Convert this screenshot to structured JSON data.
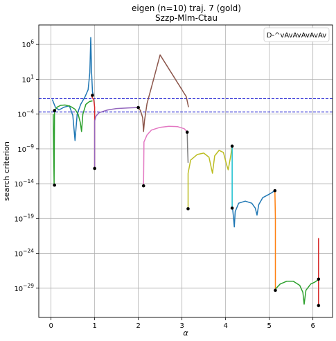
{
  "chart_data": {
    "type": "line",
    "title": "eigen (n=10) traj. 7 (gold)",
    "subtitle": "Szzp-Mlm-Ctau",
    "xlabel": "α",
    "ylabel": "search criterion",
    "y_scale": "log",
    "xlim": [
      -0.28,
      6.45
    ],
    "ylim_exp": [
      -33.2,
      8.8
    ],
    "grid": true,
    "legend_position": "top-right",
    "legend_label": "D-^vAvAvAvAvAv",
    "x_ticks": [
      {
        "value": 0,
        "label": "0"
      },
      {
        "value": 1,
        "label": "1"
      },
      {
        "value": 2,
        "label": "2"
      },
      {
        "value": 3,
        "label": "3"
      },
      {
        "value": 4,
        "label": "4"
      },
      {
        "value": 5,
        "label": "5"
      },
      {
        "value": 6,
        "label": "6"
      }
    ],
    "y_ticks": [
      {
        "value": -29,
        "base": "10",
        "exp": "−29"
      },
      {
        "value": -24,
        "base": "10",
        "exp": "−24"
      },
      {
        "value": -19,
        "base": "10",
        "exp": "−19"
      },
      {
        "value": -14,
        "base": "10",
        "exp": "−14"
      },
      {
        "value": -9,
        "base": "10",
        "exp": "−9"
      },
      {
        "value": -4,
        "base": "10",
        "exp": "−4"
      },
      {
        "value": 1,
        "base": "10",
        "exp": "1"
      },
      {
        "value": 6,
        "base": "10",
        "exp": "6"
      }
    ],
    "threshold_lines": {
      "color": "#0000cc",
      "log10_values": [
        -1.8,
        -3.7
      ]
    },
    "series": [
      {
        "color": "#1f77b4",
        "log10_points": [
          [
            0.03,
            -1.9
          ],
          [
            0.1,
            -3.0
          ],
          [
            0.18,
            -3.4
          ],
          [
            0.3,
            -3.0
          ],
          [
            0.42,
            -2.8
          ],
          [
            0.5,
            -4.2
          ],
          [
            0.55,
            -7.8
          ],
          [
            0.6,
            -4.0
          ],
          [
            0.68,
            -2.6
          ],
          [
            0.78,
            -1.5
          ],
          [
            0.85,
            -0.5
          ],
          [
            0.89,
            2.0
          ],
          [
            0.91,
            7.0
          ],
          [
            0.93,
            2.0
          ],
          [
            0.95,
            -0.8
          ],
          [
            0.97,
            -1.3
          ]
        ]
      },
      {
        "color": "#2ca02c",
        "log10_points": [
          [
            0.05,
            -4.0
          ],
          [
            0.06,
            -9.0
          ],
          [
            0.07,
            -14.0
          ],
          [
            0.08,
            -3.5
          ],
          [
            0.14,
            -3.0
          ],
          [
            0.22,
            -2.75
          ],
          [
            0.32,
            -2.7
          ],
          [
            0.45,
            -2.9
          ],
          [
            0.55,
            -3.3
          ],
          [
            0.62,
            -4.0
          ],
          [
            0.67,
            -5.2
          ],
          [
            0.7,
            -6.5
          ],
          [
            0.73,
            -4.0
          ],
          [
            0.8,
            -2.6
          ],
          [
            0.88,
            -2.2
          ],
          [
            0.95,
            -2.1
          ]
        ]
      },
      {
        "color": "#d62728",
        "log10_points": [
          [
            0.92,
            -1.3
          ],
          [
            0.98,
            -2.0
          ],
          [
            1.0,
            -3.0
          ],
          [
            1.0,
            -11.8
          ]
        ]
      },
      {
        "color": "#9467bd",
        "log10_points": [
          [
            1.0,
            -11.8
          ],
          [
            1.0,
            -5.0
          ],
          [
            1.03,
            -4.3
          ],
          [
            1.1,
            -3.8
          ],
          [
            1.3,
            -3.4
          ],
          [
            1.5,
            -3.2
          ],
          [
            1.8,
            -3.1
          ],
          [
            2.0,
            -3.05
          ]
        ]
      },
      {
        "color": "#8c564b",
        "log10_points": [
          [
            2.0,
            -3.05
          ],
          [
            2.05,
            -3.5
          ],
          [
            2.1,
            -4.5
          ],
          [
            2.12,
            -6.5
          ],
          [
            2.14,
            -5.0
          ],
          [
            2.2,
            -2.5
          ],
          [
            2.35,
            1.0
          ],
          [
            2.5,
            4.5
          ],
          [
            2.8,
            1.5
          ],
          [
            3.1,
            -1.5
          ],
          [
            3.15,
            -3.0
          ]
        ]
      },
      {
        "color": "#e377c2",
        "log10_points": [
          [
            2.12,
            -14.3
          ],
          [
            2.13,
            -8.0
          ],
          [
            2.2,
            -7.0
          ],
          [
            2.3,
            -6.3
          ],
          [
            2.5,
            -5.9
          ],
          [
            2.7,
            -5.75
          ],
          [
            2.9,
            -5.8
          ],
          [
            3.05,
            -6.1
          ],
          [
            3.13,
            -6.6
          ]
        ]
      },
      {
        "color": "#7f7f7f",
        "log10_points": [
          [
            3.12,
            -6.6
          ],
          [
            3.13,
            -9.0
          ],
          [
            3.14,
            -11.0
          ]
        ]
      },
      {
        "color": "#bcbd22",
        "log10_points": [
          [
            3.14,
            -17.6
          ],
          [
            3.14,
            -12.5
          ],
          [
            3.2,
            -10.6
          ],
          [
            3.35,
            -9.8
          ],
          [
            3.5,
            -9.6
          ],
          [
            3.62,
            -10.2
          ],
          [
            3.7,
            -12.5
          ],
          [
            3.75,
            -10.0
          ],
          [
            3.85,
            -9.2
          ],
          [
            3.95,
            -9.5
          ],
          [
            4.02,
            -11.2
          ],
          [
            4.06,
            -12.0
          ],
          [
            4.12,
            -9.9
          ],
          [
            4.15,
            -8.6
          ]
        ]
      },
      {
        "color": "#17becf",
        "log10_points": [
          [
            4.15,
            -8.6
          ],
          [
            4.15,
            -17.5
          ]
        ]
      },
      {
        "color": "#1f77b4",
        "log10_points": [
          [
            4.16,
            -17.5
          ],
          [
            4.18,
            -18.8
          ],
          [
            4.2,
            -20.2
          ],
          [
            4.22,
            -18.0
          ],
          [
            4.3,
            -16.8
          ],
          [
            4.45,
            -16.5
          ],
          [
            4.6,
            -16.8
          ],
          [
            4.68,
            -17.5
          ],
          [
            4.72,
            -18.5
          ],
          [
            4.76,
            -17.0
          ],
          [
            4.85,
            -16.0
          ],
          [
            5.0,
            -15.5
          ],
          [
            5.13,
            -15.0
          ]
        ]
      },
      {
        "color": "#ff7f0e",
        "log10_points": [
          [
            5.13,
            -15.0
          ],
          [
            5.14,
            -19.0
          ],
          [
            5.14,
            -24.0
          ],
          [
            5.14,
            -29.3
          ]
        ]
      },
      {
        "color": "#2ca02c",
        "log10_points": [
          [
            5.14,
            -29.3
          ],
          [
            5.16,
            -29.0
          ],
          [
            5.25,
            -28.4
          ],
          [
            5.4,
            -28.0
          ],
          [
            5.55,
            -28.0
          ],
          [
            5.7,
            -28.6
          ],
          [
            5.77,
            -29.6
          ],
          [
            5.8,
            -31.3
          ],
          [
            5.84,
            -29.3
          ],
          [
            5.95,
            -28.4
          ],
          [
            6.05,
            -28.1
          ],
          [
            6.12,
            -27.8
          ]
        ]
      },
      {
        "color": "#d62728",
        "log10_points": [
          [
            6.13,
            -31.5
          ],
          [
            6.13,
            -27.5
          ],
          [
            6.13,
            -23.0
          ],
          [
            6.13,
            -21.8
          ]
        ]
      }
    ],
    "markers": [
      [
        0.08,
        -14.2
      ],
      [
        0.08,
        -3.5
      ],
      [
        0.95,
        -1.3
      ],
      [
        1.0,
        -11.8
      ],
      [
        2.0,
        -3.05
      ],
      [
        2.12,
        -14.3
      ],
      [
        3.12,
        -6.6
      ],
      [
        3.14,
        -17.6
      ],
      [
        4.15,
        -8.6
      ],
      [
        4.15,
        -17.5
      ],
      [
        5.13,
        -15.0
      ],
      [
        5.14,
        -29.3
      ],
      [
        6.13,
        -31.5
      ],
      [
        6.13,
        -27.7
      ]
    ]
  }
}
